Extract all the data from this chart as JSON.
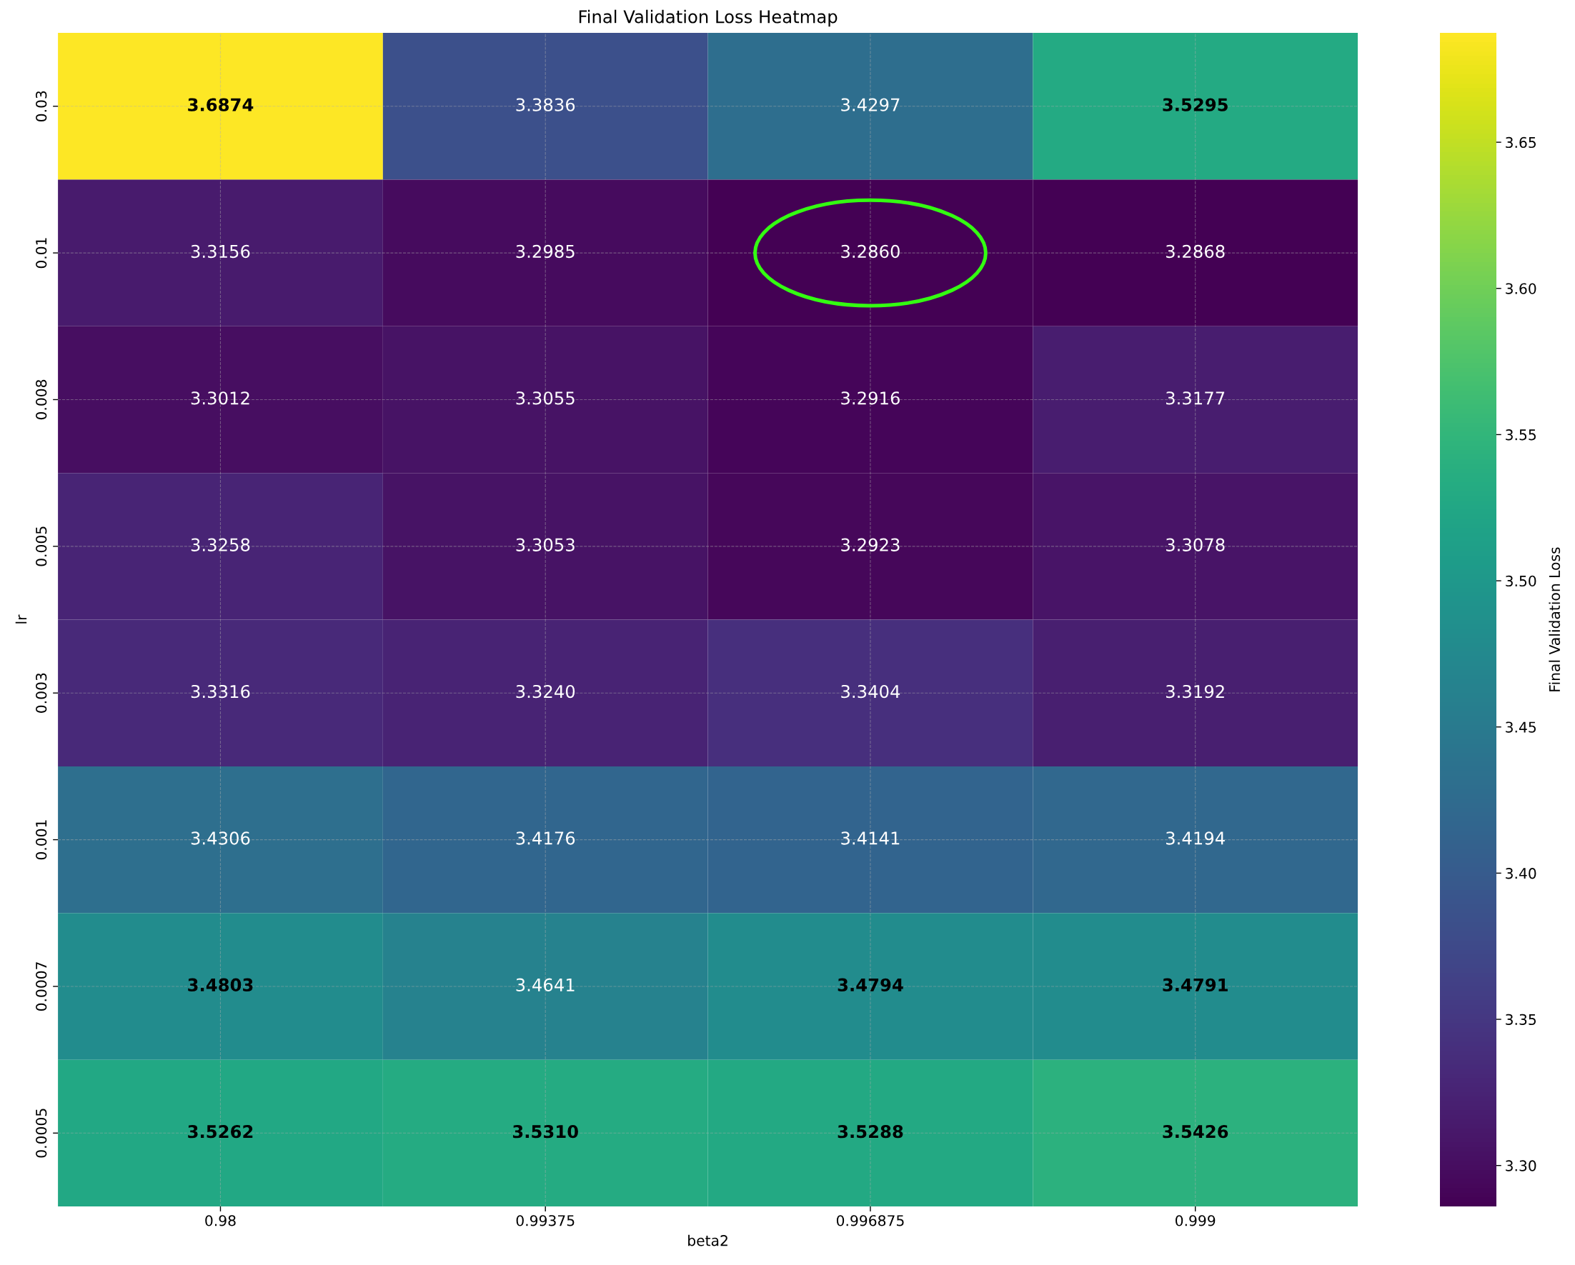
{
  "chart_data": {
    "type": "heatmap",
    "title": "Final Validation Loss Heatmap",
    "xlabel": "beta2",
    "ylabel": "lr",
    "clabel": "Final Validation Loss",
    "categories": [
      "0.98",
      "0.99375",
      "0.996875",
      "0.999"
    ],
    "y_categories": [
      "0.03",
      "0.01",
      "0.008",
      "0.005",
      "0.003",
      "0.001",
      "0.0007",
      "0.0005"
    ],
    "cells": [
      [
        3.6874,
        3.3836,
        3.4297,
        3.5295
      ],
      [
        3.3156,
        3.2985,
        3.286,
        3.2868
      ],
      [
        3.3012,
        3.3055,
        3.2916,
        3.3177
      ],
      [
        3.3258,
        3.3053,
        3.2923,
        3.3078
      ],
      [
        3.3316,
        3.324,
        3.3404,
        3.3192
      ],
      [
        3.4306,
        3.4176,
        3.4141,
        3.4194
      ],
      [
        3.4803,
        3.4641,
        3.4794,
        3.4791
      ],
      [
        3.5262,
        3.531,
        3.5288,
        3.5426
      ]
    ],
    "cell_labels": [
      [
        "3.6874",
        "3.3836",
        "3.4297",
        "3.5295"
      ],
      [
        "3.3156",
        "3.2985",
        "3.2860",
        "3.2868"
      ],
      [
        "3.3012",
        "3.3055",
        "3.2916",
        "3.3177"
      ],
      [
        "3.3258",
        "3.3053",
        "3.2923",
        "3.3078"
      ],
      [
        "3.3316",
        "3.3240",
        "3.3404",
        "3.3192"
      ],
      [
        "3.4306",
        "3.4176",
        "3.4141",
        "3.4194"
      ],
      [
        "3.4803",
        "3.4641",
        "3.4794",
        "3.4791"
      ],
      [
        "3.5262",
        "3.5310",
        "3.5288",
        "3.5426"
      ]
    ],
    "clim": [
      3.286,
      3.6874
    ],
    "cticks": [
      {
        "value": 3.3,
        "label": "3.30"
      },
      3.35,
      {
        "value": 3.4,
        "label": "3.40"
      },
      3.45,
      {
        "value": 3.5,
        "label": "3.50"
      },
      3.55,
      {
        "value": 3.6,
        "label": "3.60"
      },
      3.65
    ],
    "grid": true
  }
}
